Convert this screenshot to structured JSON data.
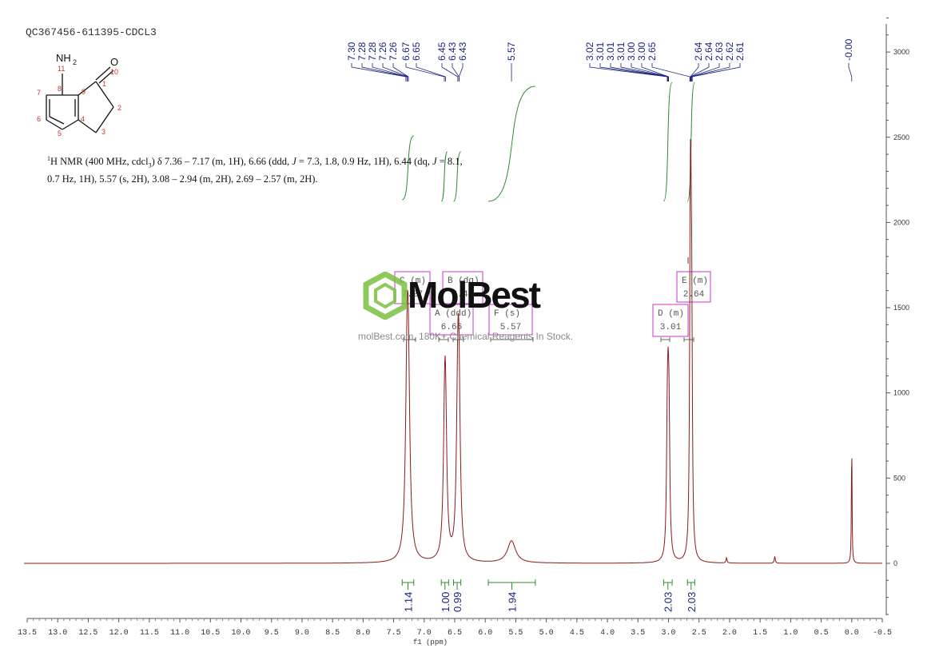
{
  "sample_id": "QC367456-611395-CDCL3",
  "nmr_description": {
    "prefix": "1",
    "main": "H NMR (400 MHz, cdcl",
    "sub": "3",
    "rest1": ") δ 7.36 – 7.17 (m, 1H), 6.66 (ddd, ",
    "j1": "J",
    "rest2": " = 7.3, 1.8, 0.9 Hz, 1H), 6.44 (dq, ",
    "j2": "J",
    "rest3": " = 8.1,",
    "line2": "0.7 Hz, 1H), 5.57 (s, 2H), 3.08 – 2.94 (m, 2H), 2.69 – 2.57 (m, 2H)."
  },
  "structure": {
    "nh2": "NH",
    "nh2_sub": "2",
    "o": "O",
    "atom_numbers": [
      "11",
      "10",
      "1",
      "2",
      "3",
      "4",
      "5",
      "6",
      "7",
      "8",
      "9"
    ]
  },
  "watermark": {
    "logo": "MolBest",
    "tagline": "molBest.com, 180K+ Chemical Reagents In Stock."
  },
  "chart_data": {
    "type": "line",
    "title": "",
    "xlabel": "f1 (ppm)",
    "ylabel": "",
    "xlim": [
      13.5,
      -0.5
    ],
    "ylim": [
      -300,
      3200
    ],
    "x_ticks": [
      "13.5",
      "13.0",
      "12.5",
      "12.0",
      "11.5",
      "11.0",
      "10.5",
      "10.0",
      "9.5",
      "9.0",
      "8.5",
      "8.0",
      "7.5",
      "7.0",
      "6.5",
      "6.0",
      "5.5",
      "5.0",
      "4.5",
      "4.0",
      "3.5",
      "3.0",
      "2.5",
      "2.0",
      "1.5",
      "1.0",
      "0.5",
      "0.0",
      "-0.5"
    ],
    "y_ticks": [
      "3000",
      "2500",
      "2000",
      "1500",
      "1000",
      "500",
      "0"
    ],
    "colors": {
      "spectrum": "#8b1a1a",
      "integral": "#2e8b2e",
      "peak_label": "#1a237e",
      "multiplet_box": "#cc33cc"
    },
    "peaks": [
      {
        "ppm": 7.28,
        "height": 900,
        "width": 0.03
      },
      {
        "ppm": 7.26,
        "height": 880,
        "width": 0.03
      },
      {
        "ppm": 6.665,
        "height": 660,
        "width": 0.025
      },
      {
        "ppm": 6.65,
        "height": 640,
        "width": 0.025
      },
      {
        "ppm": 6.45,
        "height": 860,
        "width": 0.025
      },
      {
        "ppm": 6.43,
        "height": 820,
        "width": 0.025
      },
      {
        "ppm": 5.57,
        "height": 130,
        "width": 0.08
      },
      {
        "ppm": 3.02,
        "height": 620,
        "width": 0.015
      },
      {
        "ppm": 3.005,
        "height": 660,
        "width": 0.015
      },
      {
        "ppm": 2.99,
        "height": 600,
        "width": 0.015
      },
      {
        "ppm": 2.645,
        "height": 1300,
        "width": 0.012
      },
      {
        "ppm": 2.635,
        "height": 1250,
        "width": 0.012
      },
      {
        "ppm": 2.62,
        "height": 1200,
        "width": 0.012
      },
      {
        "ppm": 2.05,
        "height": 30,
        "width": 0.01
      },
      {
        "ppm": 1.26,
        "height": 40,
        "width": 0.01
      },
      {
        "ppm": 0.0,
        "height": 750,
        "width": 0.006
      }
    ],
    "peak_labels": [
      "7.30",
      "7.28",
      "7.28",
      "7.26",
      "7.26",
      "6.67",
      "6.65",
      "6.45",
      "6.43",
      "6.43",
      "5.57",
      "3.02",
      "3.01",
      "3.01",
      "3.01",
      "3.00",
      "3.00",
      "2.65",
      "2.64",
      "2.64",
      "2.63",
      "2.62",
      "2.61",
      "-0.00"
    ],
    "integrals": [
      {
        "from": 7.36,
        "to": 7.17,
        "value": "1.14"
      },
      {
        "from": 6.72,
        "to": 6.6,
        "value": "1.00"
      },
      {
        "from": 6.52,
        "to": 6.4,
        "value": "0.99"
      },
      {
        "from": 5.95,
        "to": 5.18,
        "value": "1.94"
      },
      {
        "from": 3.08,
        "to": 2.94,
        "value": "2.03"
      },
      {
        "from": 2.69,
        "to": 2.57,
        "value": "2.03"
      }
    ],
    "multiplets": [
      {
        "id": "C",
        "type": "(m)",
        "shift": "7.27"
      },
      {
        "id": "A",
        "type": "(ddd)",
        "shift": "6.66"
      },
      {
        "id": "B",
        "type": "(dq)",
        "shift": "6.44"
      },
      {
        "id": "F",
        "type": "(s)",
        "shift": "5.57"
      },
      {
        "id": "D",
        "type": "(m)",
        "shift": "3.01"
      },
      {
        "id": "E",
        "type": "(m)",
        "shift": "2.64"
      }
    ]
  }
}
